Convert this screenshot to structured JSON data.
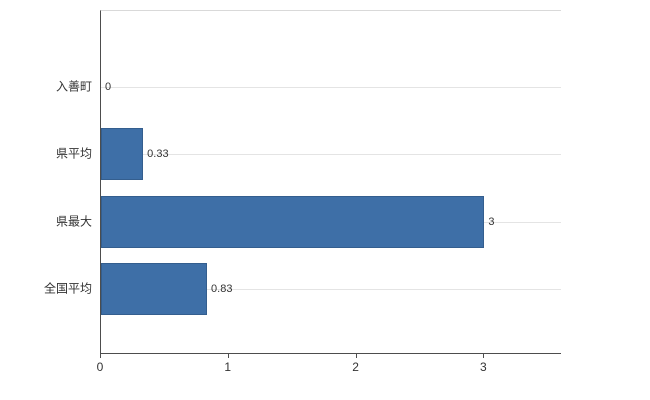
{
  "chart_data": {
    "type": "bar",
    "orientation": "horizontal",
    "title": "",
    "xlabel": "",
    "ylabel": "",
    "categories": [
      "入善町",
      "県平均",
      "県最大",
      "全国平均"
    ],
    "values": [
      0,
      0.33,
      3,
      0.83
    ],
    "value_labels": [
      "0",
      "0.33",
      "3",
      "0.83"
    ],
    "x_ticks": [
      0,
      1,
      2,
      3
    ],
    "x_tick_labels": [
      "0",
      "1",
      "2",
      "3"
    ],
    "xlim": [
      0,
      3.6
    ],
    "grid": true,
    "legend": "none",
    "bar_color": "#3e6fa7",
    "axis_color": "#4d4d4d",
    "gridline_color": "#e4e4e4",
    "background_color": "#ffffff",
    "label_color": "#333333"
  }
}
